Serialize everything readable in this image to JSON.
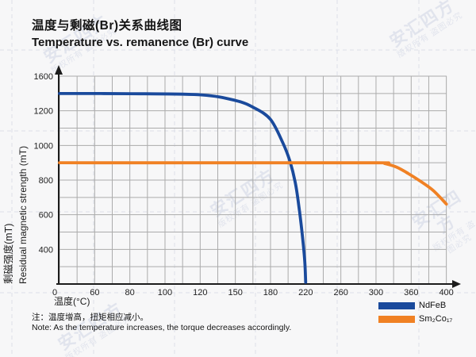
{
  "page": {
    "title_zh": "温度与剩磁(Br)关系曲线图",
    "title_en": "Temperature vs. remanence (Br) curve",
    "note_zh": "注：温度增高，扭矩相应减小。",
    "note_en": "Note: As the temperature increases, the torque decreases accordingly.",
    "watermark": {
      "line1": "安汇四方",
      "line2": "版权所有 盗图必究"
    }
  },
  "chart_data": {
    "type": "line",
    "title": "Temperature vs. remanence (Br) curve",
    "title_zh": "温度与剩磁(Br)关系曲线图",
    "xlabel": "温度(°C)",
    "ylabel_zh": "剩磁强度(mT)",
    "ylabel_en": "Residual magnetic strength (mT)",
    "x_ticks": [
      0,
      60,
      80,
      100,
      120,
      150,
      180,
      220,
      260,
      300,
      360,
      400
    ],
    "y_ticks": [
      1600,
      1200,
      1000,
      800,
      600,
      400
    ],
    "grid": true,
    "legend_position": "bottom-right",
    "axis_note": "ticks are evenly spaced as printed (non-linear value steps)",
    "series": [
      {
        "name": "NdFeB",
        "color": "#1a4a9c",
        "points": [
          [
            0,
            1400
          ],
          [
            80,
            1398
          ],
          [
            120,
            1385
          ],
          [
            150,
            1320
          ],
          [
            166,
            1235
          ],
          [
            180,
            1150
          ],
          [
            194,
            1015
          ],
          [
            202,
            910
          ],
          [
            208,
            790
          ],
          [
            212,
            660
          ],
          [
            216,
            490
          ],
          [
            219,
            255
          ],
          [
            220,
            20
          ]
        ]
      },
      {
        "name": "Sm₂Co₁₇",
        "color": "#f08124",
        "points": [
          [
            0,
            900
          ],
          [
            150,
            900
          ],
          [
            300,
            900
          ],
          [
            315,
            895
          ],
          [
            335,
            875
          ],
          [
            355,
            838
          ],
          [
            370,
            795
          ],
          [
            385,
            740
          ],
          [
            400,
            662
          ]
        ]
      }
    ]
  }
}
